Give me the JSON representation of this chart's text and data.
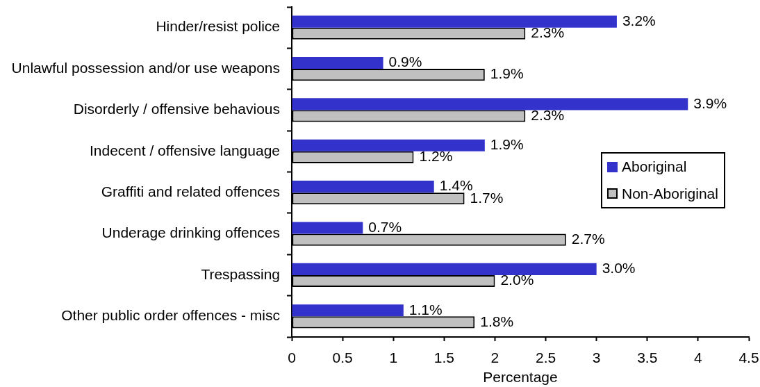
{
  "chart_data": {
    "type": "bar",
    "orientation": "horizontal",
    "categories": [
      "Hinder/resist police",
      "Unlawful possession and/or use weapons",
      "Disorderly / offensive behavious",
      "Indecent / offensive language",
      "Graffiti and related offences",
      "Underage drinking offences",
      "Trespassing",
      "Other public order offences - misc"
    ],
    "series": [
      {
        "name": "Aboriginal",
        "color": "#3333cc",
        "values": [
          3.2,
          0.9,
          3.9,
          1.9,
          1.4,
          0.7,
          3.0,
          1.1
        ],
        "value_labels": [
          "3.2%",
          "0.9%",
          "3.9%",
          "1.9%",
          "1.4%",
          "0.7%",
          "3.0%",
          "1.1%"
        ]
      },
      {
        "name": "Non-Aboriginal",
        "color": "#c0c0c0",
        "values": [
          2.3,
          1.9,
          2.3,
          1.2,
          1.7,
          2.7,
          2.0,
          1.8
        ],
        "value_labels": [
          "2.3%",
          "1.9%",
          "2.3%",
          "1.2%",
          "1.7%",
          "2.7%",
          "2.0%",
          "1.8%"
        ]
      }
    ],
    "xlabel": "Percentage",
    "xlim": [
      0,
      4.5
    ],
    "xticks": [
      0,
      0.5,
      1,
      1.5,
      2,
      2.5,
      3,
      3.5,
      4,
      4.5
    ],
    "grid": false,
    "legend": "right"
  }
}
